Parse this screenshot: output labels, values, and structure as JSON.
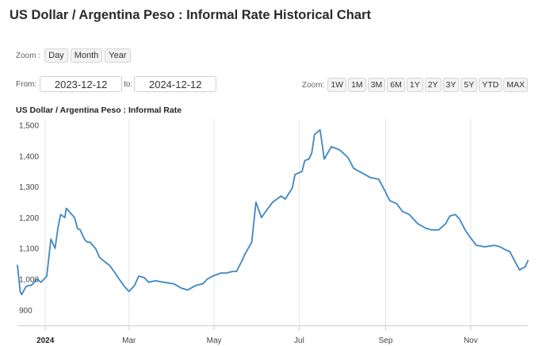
{
  "header": {
    "title": "US Dollar / Argentina Peso : Informal Rate Historical Chart"
  },
  "zoom": {
    "label": "Zoom :",
    "buttons": [
      "Day",
      "Month",
      "Year"
    ]
  },
  "range": {
    "from_label": "From:",
    "from_value": "2023-12-12",
    "to_label": "to:",
    "to_value": "2024-12-12"
  },
  "period_zoom": {
    "label": "Zoom:",
    "buttons": [
      "1W",
      "1M",
      "3M",
      "6M",
      "1Y",
      "2Y",
      "3Y",
      "5Y",
      "YTD",
      "MAX"
    ]
  },
  "colors": {
    "line": "#3d86c6",
    "grid": "#e6e6e6",
    "axis": "#cccccc"
  },
  "chart_data": {
    "type": "line",
    "title": "US Dollar / Argentina Peso : Informal Rate",
    "xlabel": "",
    "ylabel": "",
    "ylim": [
      870,
      1540
    ],
    "xlim": [
      "2023-12-12",
      "2024-12-12"
    ],
    "grid": "vertical",
    "y_ticks": [
      900,
      1000,
      1100,
      1200,
      1300,
      1400,
      1500
    ],
    "y_tick_labels": [
      "900",
      "1,000",
      "1,100",
      "1,200",
      "1,300",
      "1,400",
      "1,500"
    ],
    "x_ticks": [
      {
        "date": "2024-01-01",
        "label": "2024",
        "bold": true
      },
      {
        "date": "2024-03-01",
        "label": "Mar",
        "bold": false
      },
      {
        "date": "2024-05-01",
        "label": "May",
        "bold": false
      },
      {
        "date": "2024-07-01",
        "label": "Jul",
        "bold": false
      },
      {
        "date": "2024-09-01",
        "label": "Sep",
        "bold": false
      },
      {
        "date": "2024-11-01",
        "label": "Nov",
        "bold": false
      }
    ],
    "series": [
      {
        "name": "",
        "x": [
          "2023-12-12",
          "2023-12-14",
          "2023-12-15",
          "2023-12-18",
          "2023-12-20",
          "2023-12-22",
          "2023-12-26",
          "2023-12-29",
          "2024-01-02",
          "2024-01-05",
          "2024-01-08",
          "2024-01-10",
          "2024-01-12",
          "2024-01-15",
          "2024-01-16",
          "2024-01-18",
          "2024-01-22",
          "2024-01-24",
          "2024-01-26",
          "2024-01-29",
          "2024-01-31",
          "2024-02-02",
          "2024-02-06",
          "2024-02-09",
          "2024-02-13",
          "2024-02-16",
          "2024-02-20",
          "2024-02-23",
          "2024-02-27",
          "2024-03-01",
          "2024-03-05",
          "2024-03-08",
          "2024-03-12",
          "2024-03-15",
          "2024-03-20",
          "2024-03-26",
          "2024-04-02",
          "2024-04-08",
          "2024-04-12",
          "2024-04-18",
          "2024-04-23",
          "2024-04-26",
          "2024-04-30",
          "2024-05-06",
          "2024-05-10",
          "2024-05-14",
          "2024-05-17",
          "2024-05-21",
          "2024-05-23",
          "2024-05-28",
          "2024-05-31",
          "2024-06-04",
          "2024-06-07",
          "2024-06-12",
          "2024-06-18",
          "2024-06-21",
          "2024-06-26",
          "2024-06-28",
          "2024-07-03",
          "2024-07-05",
          "2024-07-08",
          "2024-07-10",
          "2024-07-12",
          "2024-07-16",
          "2024-07-19",
          "2024-07-24",
          "2024-07-30",
          "2024-08-05",
          "2024-08-09",
          "2024-08-15",
          "2024-08-21",
          "2024-08-27",
          "2024-08-30",
          "2024-09-04",
          "2024-09-09",
          "2024-09-13",
          "2024-09-18",
          "2024-09-24",
          "2024-09-30",
          "2024-10-04",
          "2024-10-09",
          "2024-10-14",
          "2024-10-17",
          "2024-10-21",
          "2024-10-24",
          "2024-10-28",
          "2024-10-31",
          "2024-11-05",
          "2024-11-11",
          "2024-11-18",
          "2024-11-22",
          "2024-11-26",
          "2024-11-29",
          "2024-12-03",
          "2024-12-06",
          "2024-12-10",
          "2024-12-12"
        ],
        "values": [
          1065,
          980,
          970,
          995,
          1000,
          1000,
          1020,
          1010,
          1030,
          1150,
          1120,
          1185,
          1230,
          1220,
          1250,
          1240,
          1220,
          1185,
          1180,
          1150,
          1140,
          1140,
          1120,
          1090,
          1075,
          1065,
          1040,
          1020,
          995,
          980,
          1000,
          1030,
          1025,
          1010,
          1015,
          1010,
          1005,
          990,
          985,
          1000,
          1005,
          1020,
          1030,
          1040,
          1040,
          1045,
          1045,
          1080,
          1100,
          1140,
          1270,
          1220,
          1240,
          1270,
          1290,
          1280,
          1315,
          1360,
          1370,
          1405,
          1410,
          1430,
          1490,
          1505,
          1410,
          1450,
          1440,
          1415,
          1380,
          1365,
          1350,
          1345,
          1320,
          1275,
          1265,
          1240,
          1230,
          1200,
          1185,
          1180,
          1180,
          1200,
          1225,
          1230,
          1215,
          1180,
          1160,
          1130,
          1125,
          1130,
          1125,
          1115,
          1110,
          1075,
          1050,
          1060,
          1080
        ]
      }
    ]
  }
}
